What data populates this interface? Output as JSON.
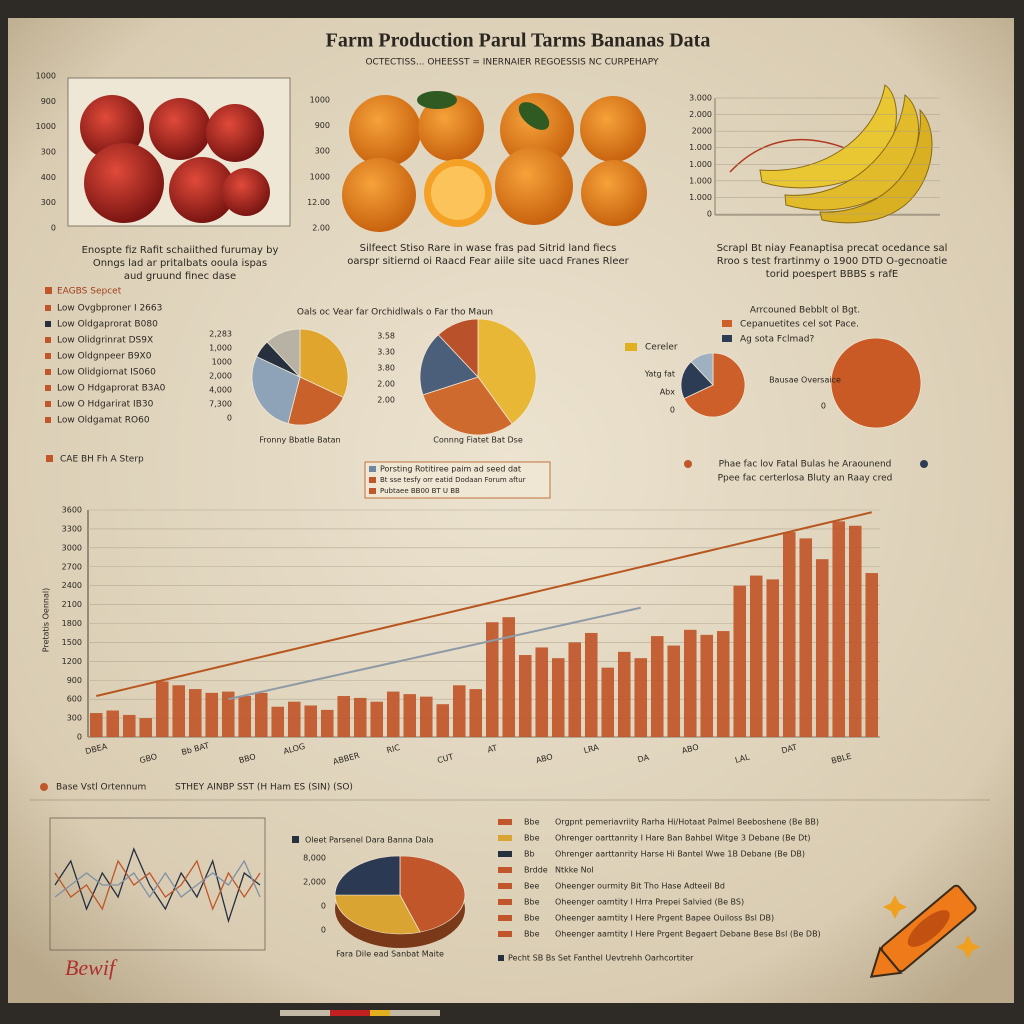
{
  "header": {
    "title": "Farm Production Parul Tarms Bananas Data",
    "subtitle": "OCTECTISS... OHEESST = INERNAIER REGOESSIS NC CURPEHAPY"
  },
  "panels": {
    "apples": {
      "axis_labels": [
        "1000",
        "900",
        "1000",
        "300",
        "400",
        "300",
        "0"
      ],
      "caption": [
        "Enospte fiz Rafit schaiithed furumay by",
        "Onngs lad ar pritalbats ooula ispas",
        "aud gruund finec dase"
      ]
    },
    "oranges": {
      "axis_labels": [
        "1000",
        "900",
        "300",
        "1000",
        "12.00",
        "2.00"
      ],
      "caption": [
        "Silfeect Stiso Rare in wase fras pad Sitrid land fiecs",
        "oarspr sitiernd oi Raacd Fear aiile site uacd Franes Rleer"
      ]
    },
    "bananas": {
      "axis_labels": [
        "3.000",
        "2.000",
        "2000",
        "1.000",
        "1.000",
        "1.000",
        "1.000",
        "0"
      ],
      "caption": [
        "Scrapl Bt niay Feanaptisa precat ocedance sal",
        "Rroo s test frartinmy o 1900 DTD O-gecnoatie",
        "torid poespert BBBS s rafE"
      ]
    }
  },
  "left_legend": {
    "heading": "EAGBS Sepcet",
    "items": [
      "Low Ovgbproner I 2663",
      "Low Oldgaprorat B080",
      "Low Olidgrinrat DS9X",
      "Low Oldgnpeer B9X0",
      "Low Olidgiornat IS060",
      "Low O Hdgaprorat B3A0",
      "Low O Hdgarirat IB30",
      "Low Oldgamat RO60"
    ]
  },
  "pie_section": {
    "heading": "Oals oc Vear far Orchidlwals o Far tho Maun",
    "right_heading": "Arrcouned Bebblt ol Bgt.",
    "right_legend": [
      "Cepanuetites cel sot Pace.",
      "Ag sota Fclmad?"
    ],
    "pie1_side": [
      "2,283",
      "1,000",
      "1000",
      "2,000",
      "4,000",
      "7,300",
      "0"
    ],
    "pie2_side": [
      "3.58",
      "3.30",
      "3.80",
      "2.00",
      "2.00"
    ],
    "pie3_side": [
      "Yatg fat",
      "Abx",
      "0"
    ],
    "pie4_side": "0"
  },
  "main_section": {
    "left_label": "CAE BH Fh A Sterp",
    "right_note": [
      "Phae fac lov Fatal Bulas he Araounend",
      "Ppee fac certerlosa Bluty an Raay cred"
    ],
    "legend_box": [
      "Porsting Rotitiree paim ad seed dat",
      "Bt sse tesfy orr eatid Dodaan Forum aftur",
      "Pubtaee BB00 BT U BB"
    ]
  },
  "bottom_section": {
    "left_heading": "Base Vstl Ortennum",
    "right_heading": "STHEY AINBP SST (H Ham ES (SIN) (SO)",
    "list": [
      {
        "tag": "Bbe",
        "text": "Orgpnt pemeriavriity Rarha Hi/Hotaat Palmel Beeboshene (Be BB)",
        "color": "#c0562a"
      },
      {
        "tag": "Bbe",
        "text": "Ohrenger oarttanrity I Hare Ban Bahbel Witge 3 Debane (Be Dt)",
        "color": "#d9a431"
      },
      {
        "tag": "Bb",
        "text": "Ohrenger aarttanrity Harse Hi Bantel Wwe 1B Debane (Be DB)",
        "color": "#26303f"
      },
      {
        "tag": "Brdde",
        "text": "Ntkke Nol",
        "color": "#c0562a"
      },
      {
        "tag": "Bee",
        "text": "Oheenger ourmity Bit Tho Hase Adteeil Bd",
        "color": "#c0562a"
      },
      {
        "tag": "Bbe",
        "text": "Oheenger oamtity I Hrra Prepei Salvied (Be BS)",
        "color": "#c0562a"
      },
      {
        "tag": "Bbe",
        "text": "Oheenger aamtity I Here Prgent Bapee Ouiloss Bsl DB)",
        "color": "#c0562a"
      },
      {
        "tag": "Bbe",
        "text": "Oheenger aamtity I Here Prgent Begaert Debane Bese Bsl (Be DB)",
        "color": "#c0562a"
      }
    ],
    "footer_item": "Pecht SB Bs Set Fanthel Uevtrehh Oarhcortiter",
    "pie_title": "Oleet Parsenel Dara Banna Dala",
    "pie_side": [
      "8,000",
      "2,000",
      "0",
      "0"
    ],
    "pie_caption": "Fara Dile ead Sanbat Maite",
    "signature": "Bewif"
  },
  "chart_data": [
    {
      "type": "bar",
      "ylabel": "Pretatis Oennal)",
      "color": "#c0562a",
      "categories": [
        "DBEA",
        null,
        null,
        "GBO",
        null,
        null,
        "Bb BAT",
        null,
        null,
        "BBO",
        null,
        null,
        "ALOG",
        null,
        null,
        "ABBER",
        null,
        null,
        "RIC",
        null,
        null,
        "CUT",
        null,
        null,
        "AT",
        null,
        null,
        "ABO",
        null,
        null,
        "LRA",
        null,
        null,
        "DA",
        null,
        null,
        "ABO",
        null,
        null,
        "LAL",
        null,
        null,
        "DAT",
        null,
        null,
        "BBLE",
        null,
        null
      ],
      "values": [
        380,
        420,
        350,
        300,
        880,
        820,
        760,
        700,
        720,
        650,
        700,
        480,
        560,
        500,
        430,
        650,
        620,
        560,
        720,
        680,
        640,
        520,
        820,
        760,
        1820,
        1900,
        1300,
        1420,
        1250,
        1500,
        1650,
        1100,
        1350,
        1250,
        1600,
        1450,
        1700,
        1620,
        1680,
        2400,
        2560,
        2500,
        3250,
        3150,
        2820,
        3420,
        3350,
        2600
      ],
      "lines": [
        {
          "color": "#b8561f",
          "values": [
            650,
            712,
            774,
            836,
            898,
            960,
            1022,
            1084,
            1146,
            1208,
            1270,
            1332,
            1394,
            1456,
            1518,
            1580,
            1642,
            1704,
            1766,
            1828,
            1890,
            1952,
            2014,
            2076,
            2138,
            2200,
            2262,
            2324,
            2386,
            2448,
            2510,
            2572,
            2634,
            2696,
            2758,
            2820,
            2882,
            2944,
            3006,
            3068,
            3130,
            3192,
            3254,
            3316,
            3378,
            3440,
            3502,
            3564
          ]
        },
        {
          "color": "#8e9aa6",
          "values": [
            null,
            null,
            null,
            null,
            null,
            null,
            null,
            null,
            600,
            658,
            716,
            774,
            832,
            890,
            948,
            1006,
            1064,
            1122,
            1180,
            1238,
            1296,
            1354,
            1412,
            1470,
            1528,
            1586,
            1644,
            1702,
            1760,
            1818,
            1876,
            1934,
            1992,
            2050,
            null,
            null,
            null,
            null,
            null,
            null,
            null,
            null,
            null,
            null,
            null,
            null,
            null,
            null
          ]
        }
      ],
      "ylim": [
        0,
        3600
      ],
      "yticks": [
        0,
        300,
        600,
        900,
        1200,
        1500,
        1800,
        2100,
        2400,
        2700,
        3000,
        3300,
        3600
      ],
      "grid": true
    },
    {
      "type": "pie",
      "title": "Fronny Bbatle Batan",
      "values": [
        32,
        22,
        28,
        6,
        12
      ],
      "colors": [
        "#e0a52c",
        "#c9622a",
        "#8fa3b8",
        "#27303e",
        "#b8b2a4"
      ]
    },
    {
      "type": "pie",
      "title": "Connng Fiatet Bat Dse",
      "values": [
        40,
        30,
        18,
        12
      ],
      "colors": [
        "#e8b735",
        "#cf6a2e",
        "#4c5f7a",
        "#b9512a"
      ]
    },
    {
      "type": "pie",
      "legend": "Cereler",
      "values": [
        68,
        20,
        12
      ],
      "colors": [
        "#cc5f2a",
        "#2d3c55",
        "#9fb0c0"
      ]
    },
    {
      "type": "pie",
      "title": "Bausae Oversaice",
      "values": [
        100
      ],
      "colors": [
        "#c95a26"
      ]
    },
    {
      "type": "pie",
      "values": [
        45,
        30,
        25
      ],
      "colors": [
        "#c0562a",
        "#d9a431",
        "#2b3a52"
      ]
    },
    {
      "type": "line",
      "ylim": [
        0,
        10
      ],
      "series": [
        {
          "color": "#27303e",
          "values": [
            5,
            7,
            3,
            6,
            4,
            8,
            5,
            3,
            6,
            4,
            7,
            2,
            6,
            5
          ]
        },
        {
          "color": "#c0562a",
          "values": [
            6,
            4,
            5,
            3,
            7,
            5,
            6,
            4,
            5,
            7,
            3,
            6,
            4,
            6
          ]
        },
        {
          "color": "#7f91a4",
          "values": [
            4,
            5,
            6,
            5,
            5,
            6,
            4,
            6,
            4,
            5,
            6,
            5,
            7,
            4
          ]
        }
      ]
    }
  ]
}
